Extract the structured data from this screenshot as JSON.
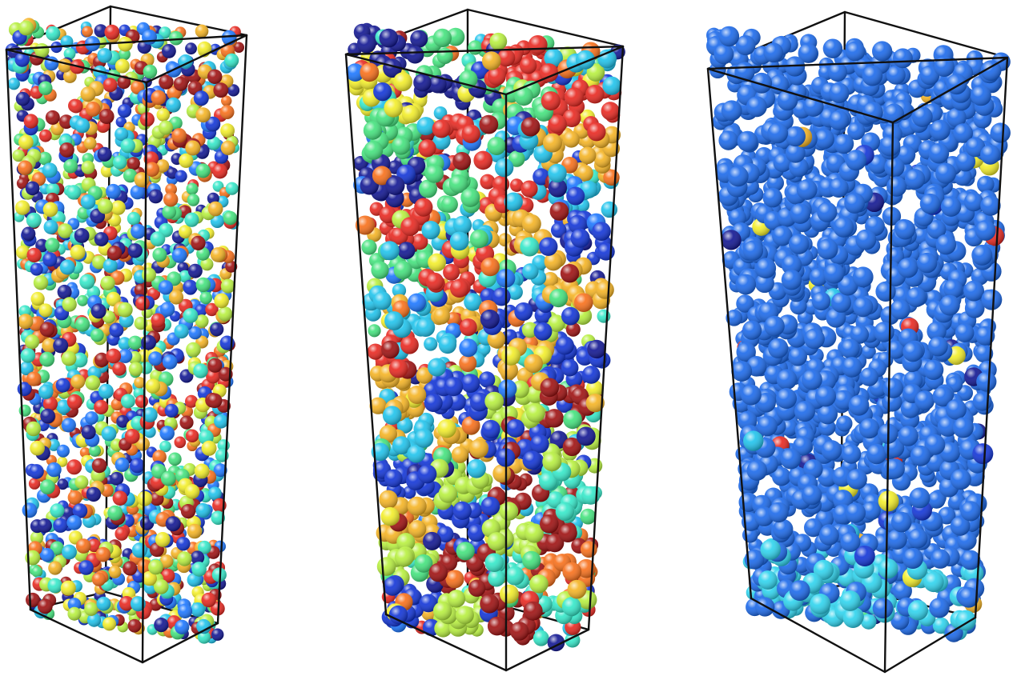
{
  "figure": {
    "panels": [
      {
        "id": "left",
        "mixing": "well-mixed",
        "palette": [
          "#0a0f8f",
          "#0b2fd6",
          "#1673ff",
          "#19c2ec",
          "#2fe8c8",
          "#3fe27a",
          "#b6f03a",
          "#f3ee24",
          "#f5b21e",
          "#f86c14",
          "#e8221a",
          "#9c0a0a"
        ],
        "dominant_color": null
      },
      {
        "id": "middle",
        "mixing": "clustered",
        "palette": [
          "#0a0f8f",
          "#0b2fd6",
          "#1673ff",
          "#19c2ec",
          "#2fe8c8",
          "#3fe27a",
          "#b6f03a",
          "#f3ee24",
          "#f5b21e",
          "#f86c14",
          "#e8221a",
          "#9c0a0a"
        ],
        "dominant_color": null
      },
      {
        "id": "right",
        "mixing": "single-dominant",
        "palette": [
          "#0b2fd6",
          "#19c2ec",
          "#e8221a",
          "#f3ee24",
          "#f5b21e",
          "#3fe27a",
          "#0a0f8f"
        ],
        "dominant_color": "#1565ea"
      }
    ]
  }
}
